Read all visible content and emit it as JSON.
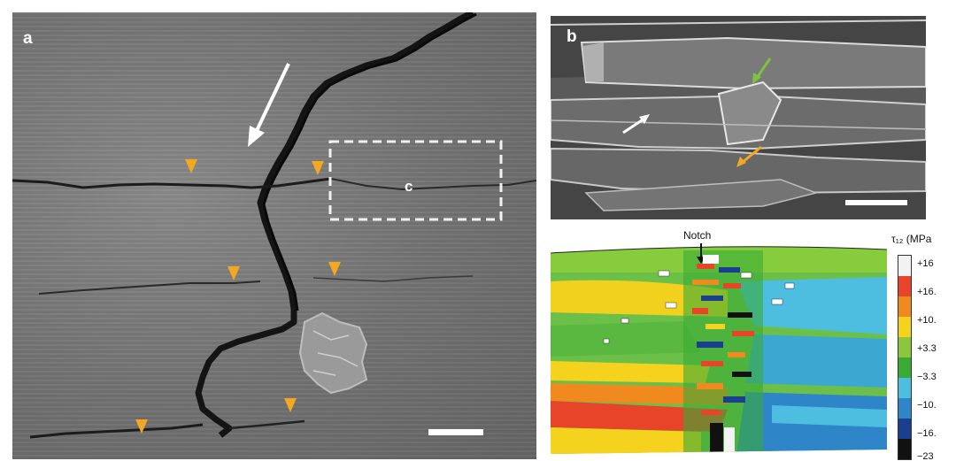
{
  "panel_a": {
    "label": "a",
    "inset_label": "c"
  },
  "panel_b": {
    "label": "b"
  },
  "panel_c": {
    "notch_label": "Notch",
    "colorbar": {
      "title": "τ₁₂ (MPa",
      "ticks": [
        "+16",
        "+16.",
        "+10.",
        "+3.3",
        "−3.3",
        "−10.",
        "−16.",
        "−23"
      ],
      "colors": [
        "#f2f2f2",
        "#e8442a",
        "#f08a1e",
        "#f4d21e",
        "#8cc63f",
        "#3aaa35",
        "#4dbedf",
        "#2e86c8",
        "#1b3f8f",
        "#111111"
      ]
    }
  },
  "colors": {
    "arrow_orange": "#f2a821",
    "arrow_green": "#7ec242",
    "scale_bar": "#ffffff"
  }
}
